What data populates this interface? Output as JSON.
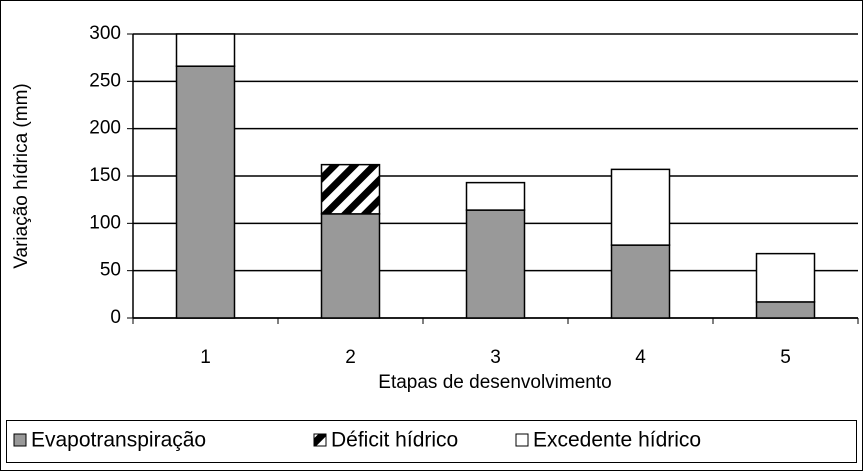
{
  "chart_data": {
    "type": "stacked_bar",
    "x_label": "Etapas de desenvolvimento",
    "y_label": "Variação hídrica (mm)",
    "categories": [
      "1",
      "2",
      "3",
      "4",
      "5"
    ],
    "series": [
      {
        "name": "Evapotranspiração",
        "color": "#999999",
        "values": [
          266,
          110,
          114,
          77,
          17
        ]
      },
      {
        "name": "Déficit hídrico",
        "color": "#000000",
        "hatch": true,
        "values": [
          0,
          52,
          0,
          0,
          0
        ]
      },
      {
        "name": "Excedente hídrico",
        "color": "#ffffff",
        "values": [
          34,
          0,
          29,
          80,
          51
        ]
      }
    ],
    "ylim": [
      0,
      300
    ],
    "yticks": [
      0,
      50,
      100,
      150,
      200,
      250,
      300
    ],
    "grid": true,
    "legend": "bottom"
  }
}
